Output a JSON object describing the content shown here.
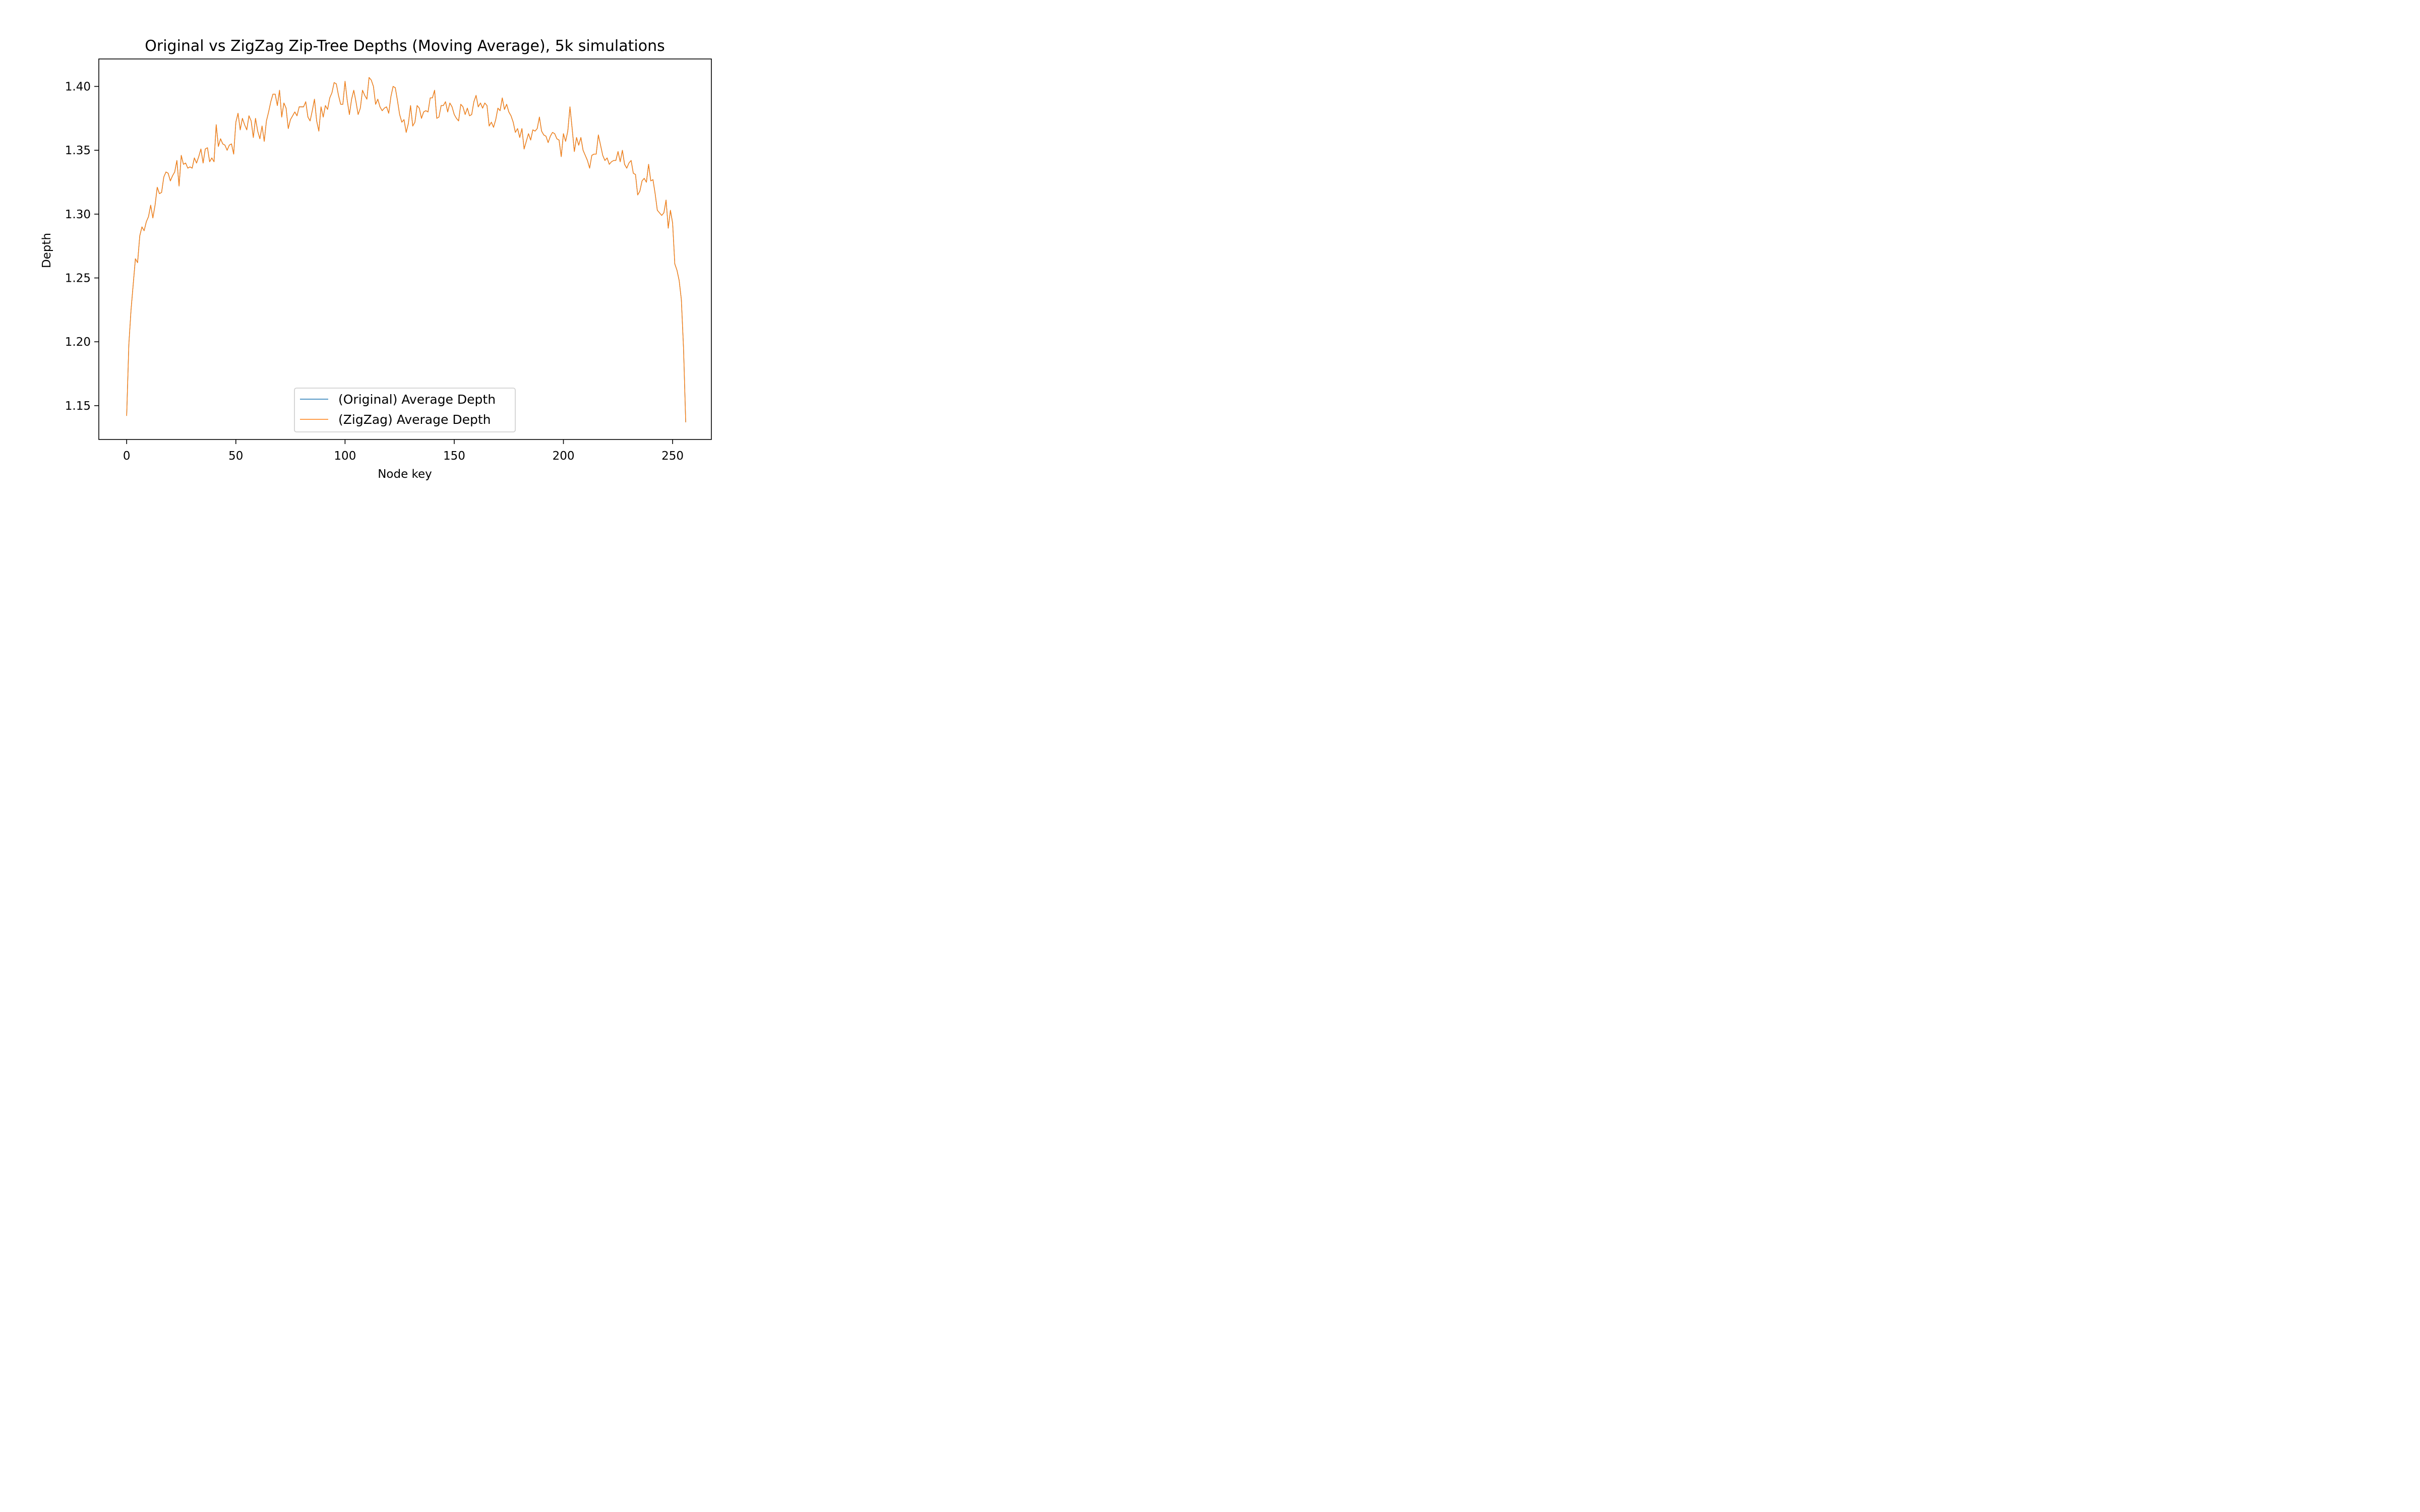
{
  "chart_data": {
    "type": "line",
    "title": "Original vs ZigZag Zip-Tree Depths (Moving Average), 5k simulations",
    "xlabel": "Node key",
    "ylabel": "Depth",
    "xlim": [
      -12.75,
      267.75
    ],
    "ylim": [
      1.1235,
      1.4215
    ],
    "xticks": [
      0,
      50,
      100,
      150,
      200,
      250
    ],
    "yticks": [
      1.15,
      1.2,
      1.25,
      1.3,
      1.35,
      1.4
    ],
    "xtick_labels": [
      "0",
      "50",
      "100",
      "150",
      "200",
      "250"
    ],
    "ytick_labels": [
      "1.15",
      "1.20",
      "1.25",
      "1.30",
      "1.35",
      "1.40"
    ],
    "grid": false,
    "legend_position": "lower center",
    "series": [
      {
        "name": "(Original) Average Depth",
        "color": "#1f77b4",
        "x_start": 0,
        "x_step": 1,
        "y": [
          1.142,
          1.198,
          1.225,
          1.245,
          1.265,
          1.262,
          1.283,
          1.29,
          1.287,
          1.294,
          1.298,
          1.307,
          1.297,
          1.307,
          1.321,
          1.316,
          1.317,
          1.329,
          1.333,
          1.332,
          1.326,
          1.33,
          1.333,
          1.342,
          1.322,
          1.346,
          1.339,
          1.34,
          1.336,
          1.337,
          1.336,
          1.344,
          1.34,
          1.345,
          1.351,
          1.34,
          1.351,
          1.352,
          1.341,
          1.344,
          1.341,
          1.37,
          1.353,
          1.359,
          1.355,
          1.354,
          1.35,
          1.354,
          1.355,
          1.347,
          1.372,
          1.379,
          1.366,
          1.375,
          1.37,
          1.366,
          1.377,
          1.373,
          1.36,
          1.375,
          1.365,
          1.359,
          1.369,
          1.357,
          1.373,
          1.38,
          1.388,
          1.394,
          1.394,
          1.385,
          1.397,
          1.376,
          1.387,
          1.383,
          1.367,
          1.374,
          1.377,
          1.38,
          1.377,
          1.384,
          1.384,
          1.384,
          1.388,
          1.376,
          1.373,
          1.381,
          1.39,
          1.373,
          1.365,
          1.384,
          1.376,
          1.385,
          1.382,
          1.391,
          1.395,
          1.403,
          1.402,
          1.393,
          1.386,
          1.386,
          1.404,
          1.389,
          1.378,
          1.39,
          1.397,
          1.388,
          1.378,
          1.383,
          1.397,
          1.393,
          1.39,
          1.407,
          1.405,
          1.4,
          1.386,
          1.39,
          1.384,
          1.381,
          1.383,
          1.384,
          1.379,
          1.392,
          1.4,
          1.399,
          1.389,
          1.378,
          1.372,
          1.374,
          1.364,
          1.371,
          1.385,
          1.369,
          1.372,
          1.385,
          1.383,
          1.375,
          1.38,
          1.381,
          1.38,
          1.391,
          1.391,
          1.397,
          1.375,
          1.376,
          1.385,
          1.385,
          1.388,
          1.38,
          1.387,
          1.384,
          1.378,
          1.375,
          1.373,
          1.386,
          1.384,
          1.378,
          1.383,
          1.377,
          1.378,
          1.388,
          1.393,
          1.384,
          1.387,
          1.383,
          1.387,
          1.385,
          1.369,
          1.372,
          1.368,
          1.374,
          1.383,
          1.381,
          1.391,
          1.382,
          1.386,
          1.38,
          1.377,
          1.372,
          1.364,
          1.367,
          1.36,
          1.367,
          1.351,
          1.357,
          1.363,
          1.358,
          1.366,
          1.365,
          1.367,
          1.376,
          1.365,
          1.362,
          1.361,
          1.356,
          1.361,
          1.364,
          1.363,
          1.359,
          1.358,
          1.345,
          1.363,
          1.357,
          1.365,
          1.384,
          1.367,
          1.349,
          1.36,
          1.354,
          1.36,
          1.35,
          1.346,
          1.342,
          1.336,
          1.346,
          1.347,
          1.347,
          1.362,
          1.354,
          1.346,
          1.342,
          1.344,
          1.339,
          1.341,
          1.342,
          1.342,
          1.349,
          1.341,
          1.35,
          1.339,
          1.336,
          1.34,
          1.342,
          1.332,
          1.331,
          1.315,
          1.318,
          1.326,
          1.328,
          1.325,
          1.339,
          1.326,
          1.327,
          1.316,
          1.303,
          1.301,
          1.299,
          1.301,
          1.311,
          1.289,
          1.303,
          1.293,
          1.261,
          1.256,
          1.248,
          1.233,
          1.195,
          1.137
        ]
      },
      {
        "name": "(ZigZag) Average Depth",
        "color": "#ff7f0e",
        "x_start": 0,
        "x_step": 1,
        "y": [
          1.142,
          1.198,
          1.225,
          1.245,
          1.265,
          1.262,
          1.283,
          1.29,
          1.287,
          1.294,
          1.298,
          1.307,
          1.297,
          1.307,
          1.321,
          1.316,
          1.317,
          1.329,
          1.333,
          1.332,
          1.326,
          1.33,
          1.333,
          1.342,
          1.322,
          1.346,
          1.339,
          1.34,
          1.336,
          1.337,
          1.336,
          1.344,
          1.34,
          1.345,
          1.351,
          1.34,
          1.351,
          1.352,
          1.341,
          1.344,
          1.341,
          1.37,
          1.353,
          1.359,
          1.355,
          1.354,
          1.35,
          1.354,
          1.355,
          1.347,
          1.372,
          1.379,
          1.366,
          1.375,
          1.37,
          1.366,
          1.377,
          1.373,
          1.36,
          1.375,
          1.365,
          1.359,
          1.369,
          1.357,
          1.373,
          1.38,
          1.388,
          1.394,
          1.394,
          1.385,
          1.397,
          1.376,
          1.387,
          1.383,
          1.367,
          1.374,
          1.377,
          1.38,
          1.377,
          1.384,
          1.384,
          1.384,
          1.388,
          1.376,
          1.373,
          1.381,
          1.39,
          1.373,
          1.365,
          1.384,
          1.376,
          1.385,
          1.382,
          1.391,
          1.395,
          1.403,
          1.402,
          1.393,
          1.386,
          1.386,
          1.404,
          1.389,
          1.378,
          1.39,
          1.397,
          1.388,
          1.378,
          1.383,
          1.397,
          1.393,
          1.39,
          1.407,
          1.405,
          1.4,
          1.386,
          1.39,
          1.384,
          1.381,
          1.383,
          1.384,
          1.379,
          1.392,
          1.4,
          1.399,
          1.389,
          1.378,
          1.372,
          1.374,
          1.364,
          1.371,
          1.385,
          1.369,
          1.372,
          1.385,
          1.383,
          1.375,
          1.38,
          1.381,
          1.38,
          1.391,
          1.391,
          1.397,
          1.375,
          1.376,
          1.385,
          1.385,
          1.388,
          1.38,
          1.387,
          1.384,
          1.378,
          1.375,
          1.373,
          1.386,
          1.384,
          1.378,
          1.383,
          1.377,
          1.378,
          1.388,
          1.393,
          1.384,
          1.387,
          1.383,
          1.387,
          1.385,
          1.369,
          1.372,
          1.368,
          1.374,
          1.383,
          1.381,
          1.391,
          1.382,
          1.386,
          1.38,
          1.377,
          1.372,
          1.364,
          1.367,
          1.36,
          1.367,
          1.351,
          1.357,
          1.363,
          1.358,
          1.366,
          1.365,
          1.367,
          1.376,
          1.365,
          1.362,
          1.361,
          1.356,
          1.361,
          1.364,
          1.363,
          1.359,
          1.358,
          1.345,
          1.363,
          1.357,
          1.365,
          1.384,
          1.367,
          1.349,
          1.36,
          1.354,
          1.36,
          1.35,
          1.346,
          1.342,
          1.336,
          1.346,
          1.347,
          1.347,
          1.362,
          1.354,
          1.346,
          1.342,
          1.344,
          1.339,
          1.341,
          1.342,
          1.342,
          1.349,
          1.341,
          1.35,
          1.339,
          1.336,
          1.34,
          1.342,
          1.332,
          1.331,
          1.315,
          1.318,
          1.326,
          1.328,
          1.325,
          1.339,
          1.326,
          1.327,
          1.316,
          1.303,
          1.301,
          1.299,
          1.301,
          1.311,
          1.289,
          1.303,
          1.293,
          1.261,
          1.256,
          1.248,
          1.233,
          1.195,
          1.137
        ]
      }
    ]
  }
}
